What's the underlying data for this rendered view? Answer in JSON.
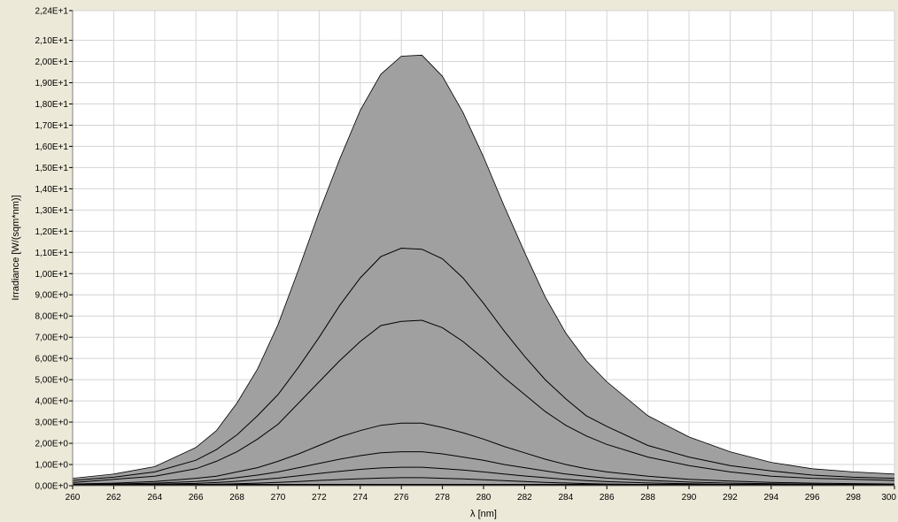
{
  "chart_data": {
    "type": "area",
    "xlabel": "λ [nm]",
    "ylabel": "Irradiance [W/(sqm*nm)]",
    "xlim": [
      260,
      300
    ],
    "ylim": [
      0,
      22.4
    ],
    "x_ticks": [
      260,
      262,
      264,
      266,
      268,
      270,
      272,
      274,
      276,
      278,
      280,
      282,
      284,
      286,
      288,
      290,
      292,
      294,
      296,
      298,
      300
    ],
    "x_tick_labels": [
      "260",
      "262",
      "264",
      "266",
      "268",
      "270",
      "272",
      "274",
      "276",
      "278",
      "280",
      "282",
      "284",
      "286",
      "288",
      "290",
      "292",
      "294",
      "296",
      "298",
      "300"
    ],
    "y_ticks": [
      0,
      1,
      2,
      3,
      4,
      5,
      6,
      7,
      8,
      9,
      10,
      11,
      12,
      13,
      14,
      15,
      16,
      17,
      18,
      19,
      20,
      21,
      22.4
    ],
    "y_tick_labels": [
      "0,00E+0",
      "1,00E+0",
      "2,00E+0",
      "3,00E+0",
      "4,00E+0",
      "5,00E+0",
      "6,00E+0",
      "7,00E+0",
      "8,00E+0",
      "9,00E+0",
      "1,00E+1",
      "1,10E+1",
      "1,20E+1",
      "1,30E+1",
      "1,40E+1",
      "1,50E+1",
      "1,60E+1",
      "1,70E+1",
      "1,80E+1",
      "1,90E+1",
      "2,00E+1",
      "2,10E+1",
      "2,24E+1"
    ],
    "grid": true,
    "legend": false,
    "fill_color": "#a0a0a0",
    "line_color": "#000000",
    "background_color": "#ffffff",
    "x": [
      260,
      262,
      264,
      266,
      267,
      268,
      269,
      270,
      271,
      272,
      273,
      274,
      275,
      276,
      277,
      278,
      279,
      280,
      281,
      282,
      283,
      284,
      285,
      286,
      288,
      290,
      292,
      294,
      296,
      298,
      300
    ],
    "series": [
      {
        "values": [
          0.35,
          0.55,
          0.9,
          1.8,
          2.6,
          3.9,
          5.5,
          7.6,
          10.2,
          12.9,
          15.4,
          17.7,
          19.4,
          20.25,
          20.3,
          19.3,
          17.6,
          15.5,
          13.2,
          11.0,
          8.9,
          7.2,
          5.9,
          4.9,
          3.3,
          2.3,
          1.6,
          1.1,
          0.8,
          0.65,
          0.55
        ]
      },
      {
        "values": [
          0.25,
          0.4,
          0.65,
          1.2,
          1.7,
          2.4,
          3.3,
          4.3,
          5.6,
          7.0,
          8.5,
          9.8,
          10.8,
          11.2,
          11.15,
          10.7,
          9.8,
          8.6,
          7.3,
          6.1,
          5.0,
          4.1,
          3.3,
          2.8,
          1.9,
          1.35,
          0.95,
          0.7,
          0.5,
          0.4,
          0.35
        ]
      },
      {
        "values": [
          0.15,
          0.3,
          0.45,
          0.8,
          1.15,
          1.6,
          2.2,
          2.9,
          3.9,
          4.9,
          5.9,
          6.8,
          7.55,
          7.75,
          7.8,
          7.45,
          6.8,
          6.0,
          5.1,
          4.3,
          3.5,
          2.85,
          2.35,
          1.95,
          1.35,
          0.95,
          0.65,
          0.45,
          0.35,
          0.3,
          0.25
        ]
      },
      {
        "values": [
          0.08,
          0.12,
          0.2,
          0.35,
          0.45,
          0.65,
          0.85,
          1.15,
          1.5,
          1.9,
          2.3,
          2.6,
          2.85,
          2.95,
          2.95,
          2.75,
          2.5,
          2.2,
          1.85,
          1.55,
          1.25,
          1.0,
          0.8,
          0.65,
          0.45,
          0.3,
          0.22,
          0.16,
          0.12,
          0.1,
          0.08
        ]
      },
      {
        "values": [
          0.05,
          0.08,
          0.12,
          0.2,
          0.27,
          0.38,
          0.5,
          0.65,
          0.85,
          1.05,
          1.25,
          1.42,
          1.55,
          1.6,
          1.6,
          1.5,
          1.35,
          1.2,
          1.0,
          0.85,
          0.7,
          0.55,
          0.45,
          0.36,
          0.25,
          0.17,
          0.12,
          0.09,
          0.07,
          0.05,
          0.05
        ]
      },
      {
        "values": [
          0.03,
          0.04,
          0.07,
          0.11,
          0.15,
          0.21,
          0.28,
          0.36,
          0.47,
          0.58,
          0.68,
          0.77,
          0.84,
          0.87,
          0.87,
          0.81,
          0.74,
          0.65,
          0.55,
          0.46,
          0.38,
          0.3,
          0.24,
          0.19,
          0.13,
          0.09,
          0.06,
          0.05,
          0.04,
          0.03,
          0.03
        ]
      },
      {
        "values": [
          0.01,
          0.02,
          0.03,
          0.05,
          0.07,
          0.09,
          0.12,
          0.16,
          0.2,
          0.25,
          0.29,
          0.33,
          0.36,
          0.38,
          0.38,
          0.35,
          0.32,
          0.28,
          0.24,
          0.2,
          0.16,
          0.13,
          0.1,
          0.08,
          0.06,
          0.04,
          0.03,
          0.02,
          0.02,
          0.01,
          0.01
        ]
      }
    ]
  }
}
